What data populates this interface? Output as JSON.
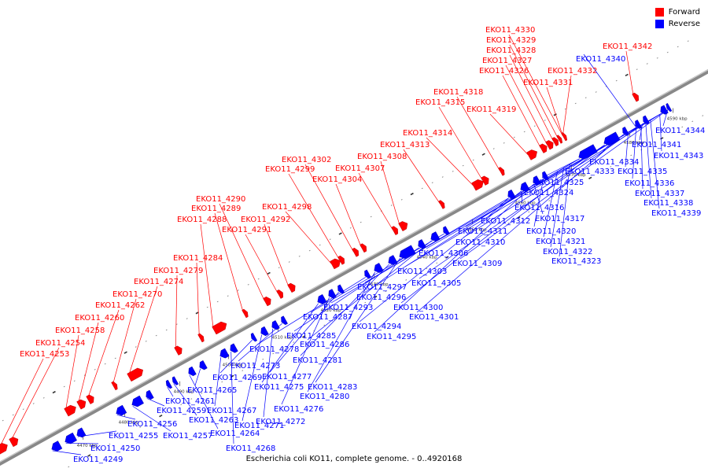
{
  "legend": {
    "forward_label": "Forward",
    "reverse_label": "Reverse",
    "forward_color": "#ff0000",
    "reverse_color": "#0000ff"
  },
  "footer": {
    "caption": "Escherichia coli KO11, complete genome. - 0..4920168"
  },
  "scale_labels": [
    "4470 kbp",
    "4480 kbp",
    "4490 kbp",
    "4500 kbp",
    "4510 kbp",
    "4520 kbp",
    "4530 kbp",
    "4540 kbp",
    "4550 kbp",
    "4560 kbp",
    "4570 kbp",
    "4580 kbp",
    "4590 kbp"
  ],
  "forward_genes": [
    "EKO11_4253",
    "EKO11_4254",
    "EKO11_4258",
    "EKO11_4260",
    "EKO11_4262",
    "EKO11_4270",
    "EKO11_4274",
    "EKO11_4279",
    "EKO11_4284",
    "EKO11_4288",
    "EKO11_4289",
    "EKO11_4290",
    "EKO11_4291",
    "EKO11_4292",
    "EKO11_4298",
    "EKO11_4299",
    "EKO11_4302",
    "EKO11_4304",
    "EKO11_4307",
    "EKO11_4308",
    "EKO11_4313",
    "EKO11_4314",
    "EKO11_4315",
    "EKO11_4318",
    "EKO11_4319",
    "EKO11_4326",
    "EKO11_4327",
    "EKO11_4328",
    "EKO11_4329",
    "EKO11_4330",
    "EKO11_4331",
    "EKO11_4332",
    "EKO11_4342"
  ],
  "reverse_genes": [
    "EKO11_4249",
    "EKO11_4250",
    "EKO11_4255",
    "EKO11_4256",
    "EKO11_4257",
    "EKO11_4259",
    "EKO11_4261",
    "EKO11_4263",
    "EKO11_4264",
    "EKO11_4265",
    "EKO11_4267",
    "EKO11_4268",
    "EKO11_4269",
    "EKO11_4271",
    "EKO11_4272",
    "EKO11_4273",
    "EKO11_4275",
    "EKO11_4276",
    "EKO11_4277",
    "EKO11_4278",
    "EKO11_4280",
    "EKO11_4281",
    "EKO11_4283",
    "EKO11_4285",
    "EKO11_4286",
    "EKO11_4287",
    "EKO11_4293",
    "EKO11_4294",
    "EKO11_4295",
    "EKO11_4296",
    "EKO11_4297",
    "EKO11_4300",
    "EKO11_4301",
    "EKO11_4303",
    "EKO11_4305",
    "EKO11_4306",
    "EKO11_4309",
    "EKO11_4310",
    "EKO11_4311",
    "EKO11_4312",
    "EKO11_4316",
    "EKO11_4317",
    "EKO11_4320",
    "EKO11_4321",
    "EKO11_4322",
    "EKO11_4323",
    "EKO11_4324",
    "EKO11_4325",
    "EKO11_4333",
    "EKO11_4334",
    "EKO11_4335",
    "EKO11_4336",
    "EKO11_4337",
    "EKO11_4338",
    "EKO11_4339",
    "EKO11_4340",
    "EKO11_4341",
    "EKO11_4343",
    "EKO11_4344"
  ]
}
